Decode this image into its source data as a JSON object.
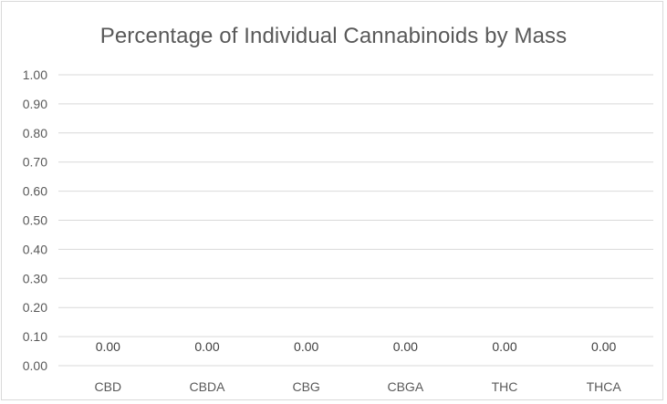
{
  "chart_data": {
    "type": "bar",
    "title": "Percentage of Individual Cannabinoids by Mass",
    "categories": [
      "CBD",
      "CBDA",
      "CBG",
      "CBGA",
      "THC",
      "THCA"
    ],
    "values": [
      0,
      0,
      0,
      0,
      0,
      0
    ],
    "data_labels": [
      "0.00",
      "0.00",
      "0.00",
      "0.00",
      "0.00",
      "0.00"
    ],
    "y_ticks": [
      "0.00",
      "0.10",
      "0.20",
      "0.30",
      "0.40",
      "0.50",
      "0.60",
      "0.70",
      "0.80",
      "0.90",
      "1.00"
    ],
    "ylim": [
      0,
      1
    ],
    "grid": true,
    "gridline_color": "#d9d9d9",
    "bar_color": "#4472c4"
  }
}
